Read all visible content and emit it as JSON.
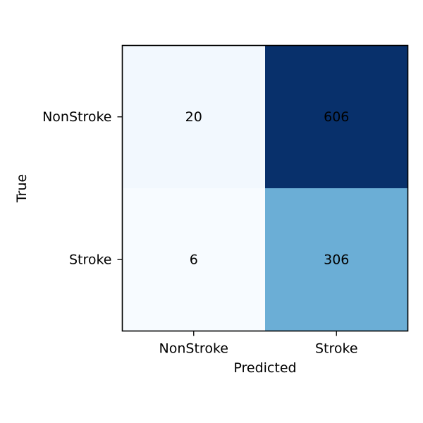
{
  "chart_data": {
    "type": "heatmap",
    "title": "",
    "xlabel": "Predicted",
    "ylabel": "True",
    "x_categories": [
      "NonStroke",
      "Stroke"
    ],
    "y_categories": [
      "NonStroke",
      "Stroke"
    ],
    "values": [
      [
        20,
        606
      ],
      [
        6,
        306
      ]
    ],
    "colormap": "Blues",
    "grid": false,
    "legend": "none"
  }
}
